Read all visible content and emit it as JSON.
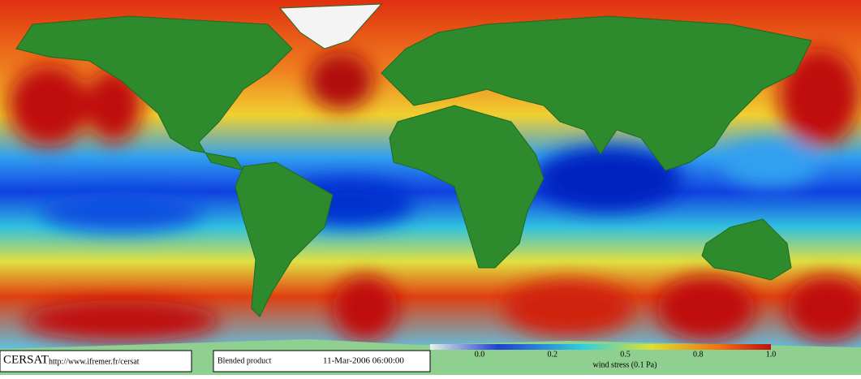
{
  "footer": {
    "logo": "CERSAT",
    "url": "http://www.ifremer.fr/cersat",
    "product": "Blended product",
    "timestamp": "11-Mar-2006 06:00:00"
  },
  "colorbar": {
    "ticks": [
      "0.0",
      "0.2",
      "0.5",
      "0.8",
      "1.0"
    ],
    "label": "wind stress (0.1 Pa)"
  }
}
